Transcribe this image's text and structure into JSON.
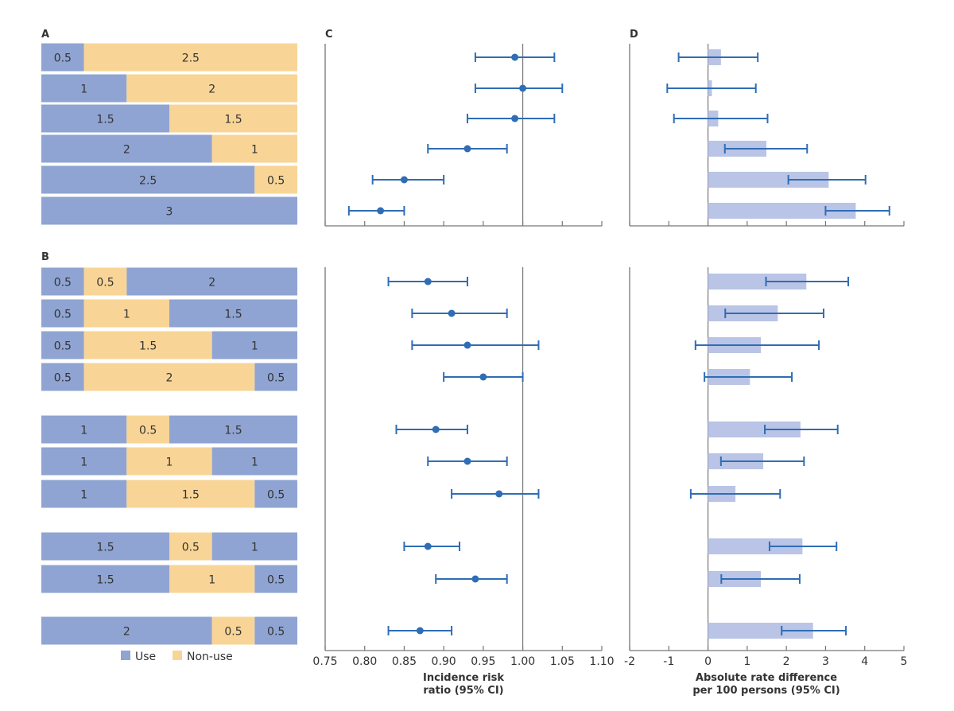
{
  "chart_data": {
    "type": "composite",
    "colors": {
      "use": "#8fa4d2",
      "nonuse": "#f8d596",
      "point": "#2f6db5",
      "bar": "#b9c4e6",
      "axis": "#777777"
    },
    "legend": {
      "use": "Use",
      "nonuse": "Non-use",
      "placement": "bottom"
    },
    "panels": {
      "A": {
        "label": "A",
        "type": "stacked-bar",
        "rows": [
          [
            [
              "use",
              0.5
            ],
            [
              "nonuse",
              2.5
            ]
          ],
          [
            [
              "use",
              1
            ],
            [
              "nonuse",
              2
            ]
          ],
          [
            [
              "use",
              1.5
            ],
            [
              "nonuse",
              1.5
            ]
          ],
          [
            [
              "use",
              2
            ],
            [
              "nonuse",
              1
            ]
          ],
          [
            [
              "use",
              2.5
            ],
            [
              "nonuse",
              0.5
            ]
          ],
          [
            [
              "use",
              3
            ]
          ]
        ]
      },
      "B": {
        "label": "B",
        "type": "stacked-bar",
        "rows": [
          [
            [
              "use",
              0.5
            ],
            [
              "nonuse",
              0.5
            ],
            [
              "use",
              2
            ]
          ],
          [
            [
              "use",
              0.5
            ],
            [
              "nonuse",
              1
            ],
            [
              "use",
              1.5
            ]
          ],
          [
            [
              "use",
              0.5
            ],
            [
              "nonuse",
              1.5
            ],
            [
              "use",
              1
            ]
          ],
          [
            [
              "use",
              0.5
            ],
            [
              "nonuse",
              2
            ],
            [
              "use",
              0.5
            ]
          ],
          [
            [
              "use",
              1
            ],
            [
              "nonuse",
              0.5
            ],
            [
              "use",
              1.5
            ]
          ],
          [
            [
              "use",
              1
            ],
            [
              "nonuse",
              1
            ],
            [
              "use",
              1
            ]
          ],
          [
            [
              "use",
              1
            ],
            [
              "nonuse",
              1.5
            ],
            [
              "use",
              0.5
            ]
          ],
          [
            [
              "use",
              1.5
            ],
            [
              "nonuse",
              0.5
            ],
            [
              "use",
              1
            ]
          ],
          [
            [
              "use",
              1.5
            ],
            [
              "nonuse",
              1
            ],
            [
              "use",
              0.5
            ]
          ],
          [
            [
              "use",
              2
            ],
            [
              "nonuse",
              0.5
            ],
            [
              "use",
              0.5
            ]
          ]
        ]
      },
      "C": {
        "label": "C",
        "type": "forest",
        "xlabel_line1": "Incidence risk",
        "xlabel_line2": "ratio (95% CI)",
        "xlim": [
          0.75,
          1.1
        ],
        "reference": 1.0,
        "ticks": [
          "0.75",
          "0.80",
          "0.85",
          "0.90",
          "0.95",
          "1.00",
          "1.05",
          "1.10"
        ],
        "top": [
          [
            0.99,
            0.94,
            1.04
          ],
          [
            1.0,
            0.94,
            1.05
          ],
          [
            0.99,
            0.93,
            1.04
          ],
          [
            0.93,
            0.88,
            0.98
          ],
          [
            0.85,
            0.81,
            0.9
          ],
          [
            0.82,
            0.78,
            0.85
          ]
        ],
        "bottom": [
          [
            0.88,
            0.83,
            0.93
          ],
          [
            0.91,
            0.86,
            0.98
          ],
          [
            0.93,
            0.86,
            1.02
          ],
          [
            0.95,
            0.9,
            1.0
          ],
          [
            0.89,
            0.84,
            0.93
          ],
          [
            0.93,
            0.88,
            0.98
          ],
          [
            0.97,
            0.91,
            1.02
          ],
          [
            0.88,
            0.85,
            0.92
          ],
          [
            0.94,
            0.89,
            0.98
          ],
          [
            0.87,
            0.83,
            0.91
          ]
        ]
      },
      "D": {
        "label": "D",
        "type": "bar-with-ci",
        "xlabel_line1": "Absolute rate difference",
        "xlabel_line2": "per 100 persons (95% CI)",
        "xlim": [
          -2,
          5
        ],
        "reference": 0,
        "ticks": [
          "-2",
          "-1",
          "0",
          "1",
          "2",
          "3",
          "4",
          "5"
        ],
        "top": [
          [
            0.33,
            -0.75,
            1.27
          ],
          [
            0.1,
            -1.04,
            1.22
          ],
          [
            0.26,
            -0.87,
            1.52
          ],
          [
            1.49,
            0.43,
            2.53
          ],
          [
            3.08,
            2.05,
            4.02
          ],
          [
            3.77,
            3.0,
            4.63
          ]
        ],
        "bottom": [
          [
            2.51,
            1.48,
            3.58
          ],
          [
            1.78,
            0.44,
            2.95
          ],
          [
            1.35,
            -0.32,
            2.83
          ],
          [
            1.07,
            -0.09,
            2.14
          ],
          [
            2.36,
            1.45,
            3.31
          ],
          [
            1.41,
            0.33,
            2.45
          ],
          [
            0.7,
            -0.44,
            1.84
          ],
          [
            2.41,
            1.57,
            3.28
          ],
          [
            1.35,
            0.34,
            2.34
          ],
          [
            2.68,
            1.88,
            3.52
          ]
        ]
      }
    }
  }
}
